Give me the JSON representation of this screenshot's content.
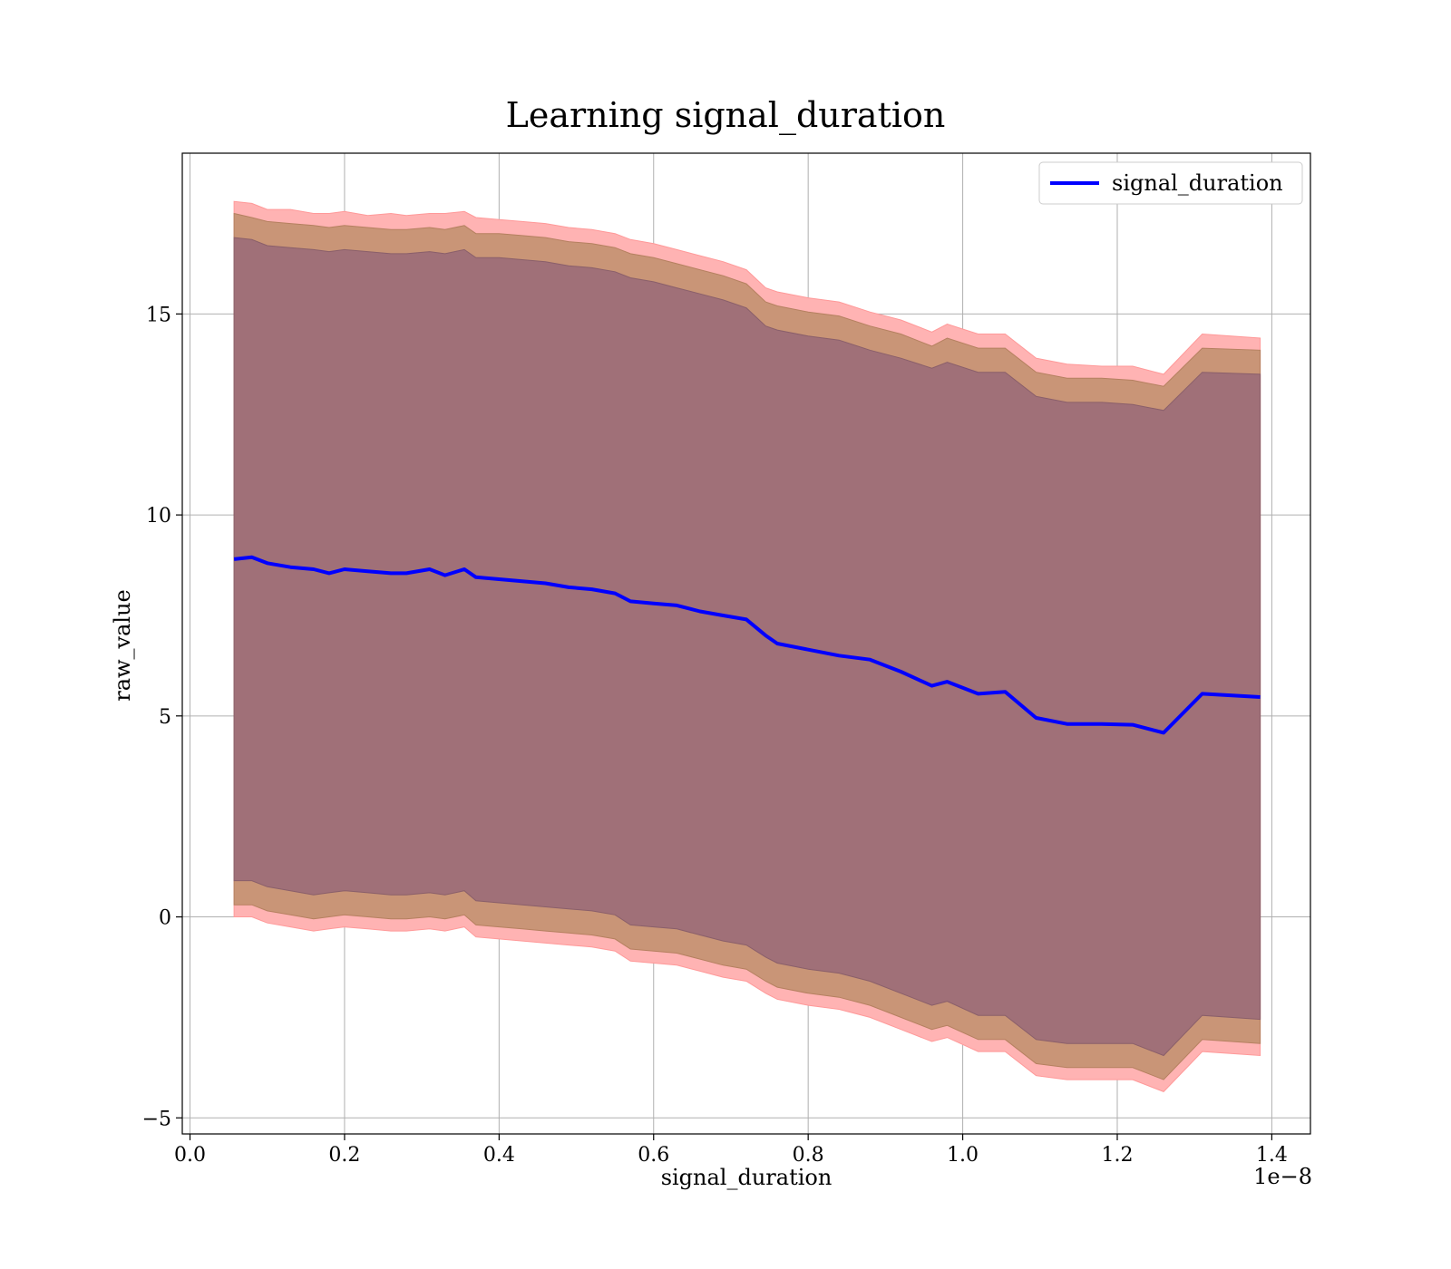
{
  "chart_data": {
    "type": "line",
    "title": "Learning signal_duration",
    "xlabel": "signal_duration",
    "ylabel": "raw_value",
    "x_offset_label": "1e−8",
    "xlim": [
      -0.01,
      1.45
    ],
    "ylim": [
      -5.4,
      19.0
    ],
    "xticks": [
      0.0,
      0.2,
      0.4,
      0.6,
      0.8,
      1.0,
      1.2,
      1.4
    ],
    "xtick_labels": [
      "0.0",
      "0.2",
      "0.4",
      "0.6",
      "0.8",
      "1.0",
      "1.2",
      "1.4"
    ],
    "yticks": [
      -5,
      0,
      5,
      10,
      15
    ],
    "ytick_labels": [
      "−5",
      "0",
      "5",
      "10",
      "15"
    ],
    "grid": true,
    "legend_position": "top-right",
    "colors": {
      "line": "#0000ff",
      "band_outer": "#ffb3b3",
      "band_middle": "#c99577",
      "band_inner": "#a07078",
      "grid": "#b0b0b0"
    },
    "x": [
      0.057,
      0.08,
      0.1,
      0.13,
      0.16,
      0.18,
      0.2,
      0.23,
      0.26,
      0.28,
      0.31,
      0.33,
      0.355,
      0.37,
      0.4,
      0.43,
      0.46,
      0.49,
      0.52,
      0.55,
      0.57,
      0.6,
      0.63,
      0.66,
      0.69,
      0.72,
      0.745,
      0.76,
      0.8,
      0.84,
      0.88,
      0.92,
      0.96,
      0.98,
      1.02,
      1.055,
      1.095,
      1.135,
      1.18,
      1.22,
      1.26,
      1.31,
      1.385
    ],
    "series": [
      {
        "name": "signal_duration",
        "values": [
          8.9,
          8.95,
          8.8,
          8.7,
          8.65,
          8.55,
          8.65,
          8.6,
          8.55,
          8.55,
          8.65,
          8.5,
          8.65,
          8.45,
          8.4,
          8.35,
          8.3,
          8.2,
          8.15,
          8.05,
          7.85,
          7.8,
          7.75,
          7.6,
          7.5,
          7.4,
          7.0,
          6.8,
          6.65,
          6.5,
          6.4,
          6.1,
          5.75,
          5.85,
          5.55,
          5.6,
          4.95,
          4.8,
          4.8,
          4.78,
          4.58,
          5.55,
          5.47
        ],
        "band_outer_upper": [
          17.8,
          17.75,
          17.6,
          17.6,
          17.5,
          17.5,
          17.55,
          17.45,
          17.5,
          17.45,
          17.5,
          17.5,
          17.55,
          17.4,
          17.35,
          17.3,
          17.25,
          17.15,
          17.1,
          17.0,
          16.85,
          16.75,
          16.6,
          16.45,
          16.3,
          16.1,
          15.65,
          15.55,
          15.4,
          15.3,
          15.05,
          14.85,
          14.55,
          14.75,
          14.5,
          14.5,
          13.9,
          13.75,
          13.7,
          13.7,
          13.5,
          14.5,
          14.4
        ],
        "band_outer_lower": [
          0.0,
          0.0,
          -0.15,
          -0.25,
          -0.35,
          -0.3,
          -0.25,
          -0.3,
          -0.35,
          -0.35,
          -0.3,
          -0.35,
          -0.25,
          -0.5,
          -0.55,
          -0.6,
          -0.65,
          -0.7,
          -0.75,
          -0.85,
          -1.1,
          -1.15,
          -1.2,
          -1.35,
          -1.5,
          -1.6,
          -1.9,
          -2.05,
          -2.2,
          -2.3,
          -2.5,
          -2.8,
          -3.1,
          -3.0,
          -3.35,
          -3.35,
          -3.95,
          -4.05,
          -4.05,
          -4.05,
          -4.35,
          -3.35,
          -3.45
        ],
        "band_middle_upper": [
          17.5,
          17.4,
          17.3,
          17.25,
          17.2,
          17.15,
          17.2,
          17.15,
          17.1,
          17.1,
          17.15,
          17.1,
          17.2,
          17.0,
          17.0,
          16.95,
          16.9,
          16.8,
          16.75,
          16.65,
          16.5,
          16.4,
          16.25,
          16.1,
          15.95,
          15.75,
          15.3,
          15.2,
          15.05,
          14.95,
          14.7,
          14.5,
          14.2,
          14.4,
          14.15,
          14.15,
          13.55,
          13.4,
          13.4,
          13.35,
          13.2,
          14.15,
          14.1
        ],
        "band_middle_lower": [
          0.3,
          0.3,
          0.15,
          0.05,
          -0.05,
          0.0,
          0.05,
          0.0,
          -0.05,
          -0.05,
          0.0,
          -0.05,
          0.05,
          -0.2,
          -0.25,
          -0.3,
          -0.35,
          -0.4,
          -0.45,
          -0.55,
          -0.8,
          -0.85,
          -0.9,
          -1.05,
          -1.2,
          -1.3,
          -1.6,
          -1.75,
          -1.9,
          -2.0,
          -2.2,
          -2.5,
          -2.8,
          -2.7,
          -3.05,
          -3.05,
          -3.65,
          -3.75,
          -3.75,
          -3.75,
          -4.05,
          -3.05,
          -3.15
        ],
        "band_inner_upper": [
          16.9,
          16.85,
          16.7,
          16.65,
          16.6,
          16.55,
          16.6,
          16.55,
          16.5,
          16.5,
          16.55,
          16.5,
          16.6,
          16.4,
          16.4,
          16.35,
          16.3,
          16.2,
          16.15,
          16.05,
          15.9,
          15.8,
          15.65,
          15.5,
          15.35,
          15.15,
          14.7,
          14.6,
          14.45,
          14.35,
          14.1,
          13.9,
          13.65,
          13.8,
          13.55,
          13.55,
          12.95,
          12.8,
          12.8,
          12.75,
          12.6,
          13.55,
          13.5
        ],
        "band_inner_lower": [
          0.9,
          0.9,
          0.75,
          0.65,
          0.55,
          0.6,
          0.65,
          0.6,
          0.55,
          0.55,
          0.6,
          0.55,
          0.65,
          0.4,
          0.35,
          0.3,
          0.25,
          0.2,
          0.15,
          0.05,
          -0.2,
          -0.25,
          -0.3,
          -0.45,
          -0.6,
          -0.7,
          -1.0,
          -1.15,
          -1.3,
          -1.4,
          -1.6,
          -1.9,
          -2.2,
          -2.1,
          -2.45,
          -2.45,
          -3.05,
          -3.15,
          -3.15,
          -3.15,
          -3.45,
          -2.45,
          -2.55
        ]
      }
    ]
  }
}
